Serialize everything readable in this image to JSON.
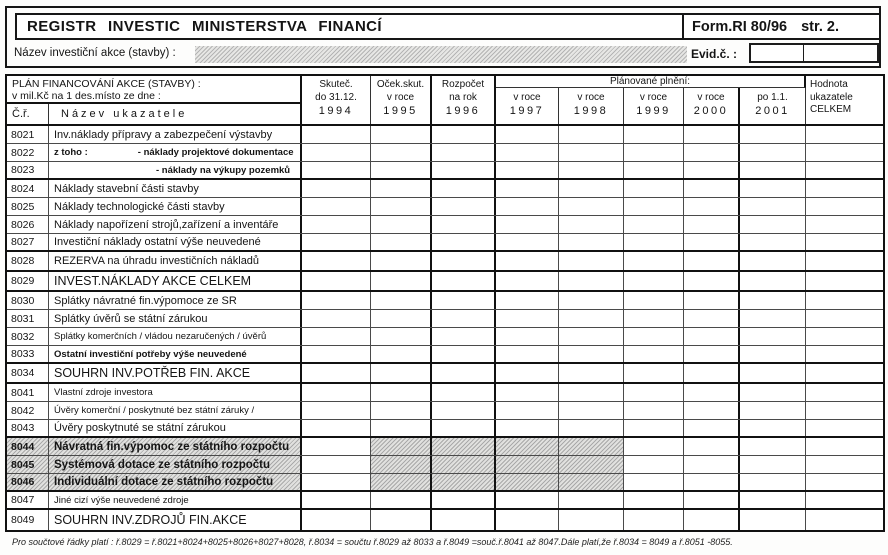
{
  "colors": {
    "ink": "#141414",
    "shade_gray": "#d9d9d7"
  },
  "header": {
    "title": "REGISTR INVESTIC MINISTERSTVA FINANCÍ",
    "form_code": "Form.RI 80/96",
    "page_label": "str. 2.",
    "project_name_label": "Název investiční akce  (stavby) :",
    "evid_label": "Evid.č. :"
  },
  "table": {
    "plan_title_line1": "PLÁN FINANCOVÁNÍ AKCE (STAVBY) :",
    "plan_title_line2": "v mil.Kč na 1 des.místo ze dne :",
    "col_row_number": "Č.ř.",
    "col_indicator": "Název ukazatele",
    "planned_span_label": "Plánované plnění:",
    "columns": [
      {
        "line1": "Skuteč.",
        "line2": "do 31.12.",
        "year": "1994"
      },
      {
        "line1": "Oček.skut.",
        "line2": "v roce",
        "year": "1995"
      },
      {
        "line1": "Rozpočet",
        "line2": "na rok",
        "year": "1996"
      },
      {
        "line2": "v roce",
        "year": "1997"
      },
      {
        "line2": "v roce",
        "year": "1998"
      },
      {
        "line2": "v roce",
        "year": "1999"
      },
      {
        "line2": "v roce",
        "year": "2000"
      },
      {
        "line2": "po 1.1.",
        "year": "2001"
      },
      {
        "line1": "Hodnota",
        "line2": "ukazatele",
        "year": "CELKEM"
      }
    ],
    "rows": [
      {
        "code": "8021",
        "label": "Inv.náklady přípravy a zabezpečení výstavby",
        "style": "normal"
      },
      {
        "code": "8022",
        "prefix": "z toho :",
        "label": "- náklady projektové dokumentace",
        "style": "sub"
      },
      {
        "code": "8023",
        "label": "- náklady na výkupy pozemků",
        "style": "sub2",
        "thick_bottom": true
      },
      {
        "code": "8024",
        "label": "Náklady stavební části stavby",
        "style": "normal"
      },
      {
        "code": "8025",
        "label": "Náklady technologické části stavby",
        "style": "normal"
      },
      {
        "code": "8026",
        "label": "Náklady napořízení strojů,zařízení a inventáře",
        "style": "normal"
      },
      {
        "code": "8027",
        "label": "Investiční náklady ostatní výše neuvedené",
        "style": "normal",
        "thick_bottom": true
      },
      {
        "code": "8028",
        "label": "REZERVA na úhradu investičních nákladů",
        "style": "normal",
        "tall": true,
        "thick_bottom": true
      },
      {
        "code": "8029",
        "label": "INVEST.NÁKLADY AKCE CELKEM",
        "style": "caps",
        "tall": true,
        "thick_bottom": true
      },
      {
        "code": "8030",
        "label": "Splátky návratné fin.výpomoce ze SR",
        "style": "normal"
      },
      {
        "code": "8031",
        "label": "Splátky úvěrů se státní zárukou",
        "style": "normal"
      },
      {
        "code": "8032",
        "label": "Splátky komerčních / vládou nezaručených / úvěrů",
        "style": "small"
      },
      {
        "code": "8033",
        "label": "Ostatní investiční potřeby výše neuvedené",
        "style": "small-bold",
        "thick_bottom": true
      },
      {
        "code": "8034",
        "label": "SOUHRN INV.POTŘEB FIN. AKCE",
        "style": "caps",
        "tall": true,
        "thick_bottom": true
      },
      {
        "code": "8041",
        "label": "Vlastní zdroje investora",
        "style": "small"
      },
      {
        "code": "8042",
        "label": "Úvěry komerční / poskytnuté bez státní záruky /",
        "style": "small"
      },
      {
        "code": "8043",
        "label": "Úvěry poskytnuté se státní zárukou",
        "style": "normal",
        "thick_bottom": true
      },
      {
        "code": "8044",
        "label": "Návratná fin.výpomoc ze státního rozpočtu",
        "style": "bold-shaded",
        "shaded": true
      },
      {
        "code": "8045",
        "label": "Systémová dotace ze státního rozpočtu",
        "style": "bold-shaded",
        "shaded": true
      },
      {
        "code": "8046",
        "label": "Individuální dotace ze státního rozpočtu",
        "style": "bold-shaded",
        "shaded": true,
        "thick_bottom": true
      },
      {
        "code": "8047",
        "label": "Jiné cizí výše neuvedené zdroje",
        "style": "small",
        "thick_bottom": true
      },
      {
        "code": "8049",
        "label": "SOUHRN INV.ZDROJŮ FIN.AKCE",
        "style": "caps",
        "tall": true
      }
    ]
  },
  "footer": {
    "note": "Pro součtové řádky platí : ř.8029 = ř.8021+8024+8025+8026+8027+8028, ř.8034 = součtu ř.8029 až 8033  a ř.8049 =souč.ř.8041 až 8047.Dále platí,že ř.8034 = 8049 a ř.8051 -8055."
  }
}
